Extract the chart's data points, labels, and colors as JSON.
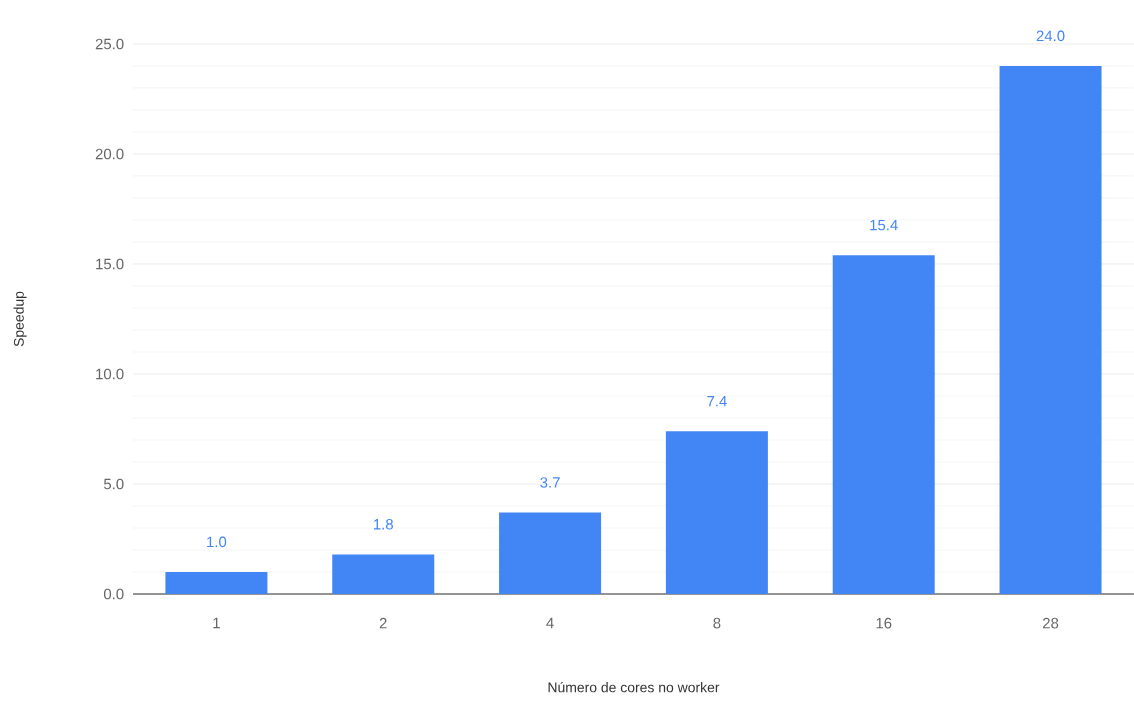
{
  "chart_data": {
    "type": "bar",
    "xlabel": "Número de cores no worker",
    "ylabel": "Speedup",
    "categories": [
      "1",
      "2",
      "4",
      "8",
      "16",
      "28"
    ],
    "values": [
      1.0,
      1.8,
      3.7,
      7.4,
      15.4,
      24.0
    ],
    "value_labels": [
      "1.0",
      "1.8",
      "3.7",
      "7.4",
      "15.4",
      "24.0"
    ],
    "color": "#4285f4",
    "ylim": [
      0,
      25
    ],
    "yticks": [
      {
        "value": 0,
        "label": "0.0"
      },
      {
        "value": 5,
        "label": "5.0"
      },
      {
        "value": 10,
        "label": "10.0"
      },
      {
        "value": 15,
        "label": "15.0"
      },
      {
        "value": 20,
        "label": "20.0"
      },
      {
        "value": 25,
        "label": "25.0"
      }
    ],
    "grid": "y"
  }
}
